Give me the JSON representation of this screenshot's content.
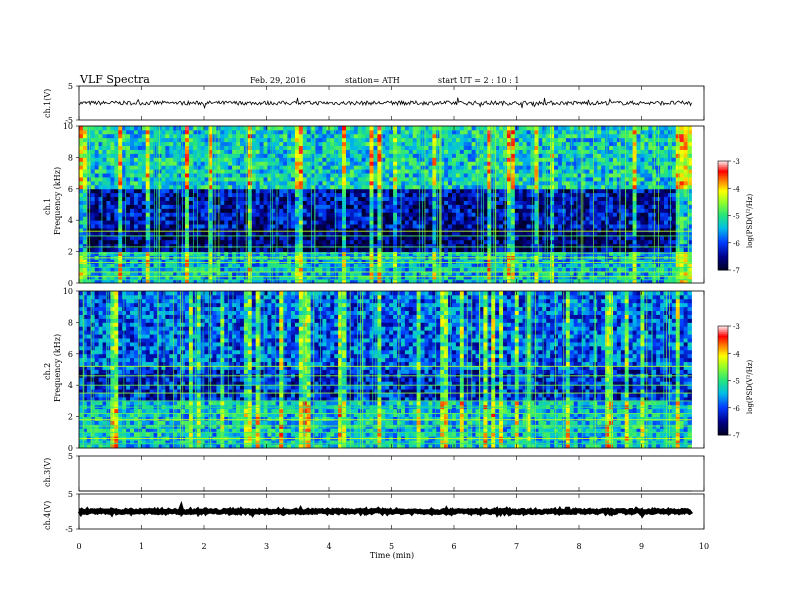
{
  "header": {
    "title": "VLF  Spectra",
    "date": "Feb. 29, 2016",
    "station": "station= ATH",
    "start": "start  UT  =   2  : 10 : 1"
  },
  "colors": {
    "background": "#ffffff",
    "axes": "#000000",
    "spec_dark": "#000033",
    "spec_blue": "#0000cc",
    "spec_cyan": "#00cccc",
    "spec_green": "#33ff66",
    "spec_yellow": "#ffff00",
    "spec_red": "#ff0000"
  },
  "chart_data": {
    "type": "heatmap",
    "xlabel": "Time  (min)",
    "xlim": [
      0,
      10
    ],
    "x_ticks": [
      "0",
      "1",
      "2",
      "3",
      "4",
      "5",
      "6",
      "7",
      "8",
      "9",
      "10"
    ],
    "data_end_min": 9.8,
    "panels": [
      {
        "id": "ch1_wave",
        "type": "line",
        "ylabel": "ch.1(V)",
        "ylim": [
          -5,
          5
        ],
        "y_ticks": [
          "5",
          "-5"
        ],
        "mean": 0,
        "noise": 0.6
      },
      {
        "id": "ch1_spec",
        "type": "heatmap",
        "ylabel": "ch.1",
        "ylabel2": "Frequency  (kHz)",
        "ylim": [
          0,
          10
        ],
        "y_ticks": [
          "0",
          "2",
          "4",
          "6",
          "8",
          "10"
        ],
        "bands": [
          {
            "f0": 0.0,
            "f1": 2.0,
            "level": -5.5
          },
          {
            "f0": 2.0,
            "f1": 3.5,
            "level": -6.7
          },
          {
            "f0": 3.5,
            "f1": 5.8,
            "level": -6.4
          },
          {
            "f0": 5.8,
            "f1": 10.0,
            "level": -5.3
          }
        ],
        "lines_khz": [
          0.2,
          0.4,
          0.7,
          1.0,
          1.3,
          1.6,
          1.9,
          2.3,
          3.0,
          3.3
        ]
      },
      {
        "id": "ch2_spec",
        "type": "heatmap",
        "ylabel": "ch.2",
        "ylabel2": "Frequency  (kHz)",
        "ylim": [
          0,
          10
        ],
        "y_ticks": [
          "0",
          "2",
          "4",
          "6",
          "8",
          "10"
        ],
        "bands": [
          {
            "f0": 0.0,
            "f1": 3.0,
            "level": -5.4
          },
          {
            "f0": 3.0,
            "f1": 5.0,
            "level": -6.2
          },
          {
            "f0": 5.0,
            "f1": 10.0,
            "level": -5.9
          }
        ],
        "lines_khz": [
          0.3,
          0.6,
          1.0,
          1.4,
          1.8,
          2.2,
          2.6,
          3.0,
          3.5,
          4.0,
          4.6,
          5.2
        ]
      },
      {
        "id": "ch3_wave",
        "type": "line",
        "ylabel": "ch.3(V)",
        "ylim": [
          -5,
          5
        ],
        "y_ticks": [
          "5"
        ],
        "mean": -5,
        "noise": 0.0
      },
      {
        "id": "ch4_wave",
        "type": "line",
        "ylabel": "ch.4(V)",
        "ylim": [
          -5,
          5
        ],
        "y_ticks": [
          "5",
          "-5"
        ],
        "mean": 0,
        "noise": 0.3
      }
    ],
    "colorbar": {
      "label": "log(PSD(V²/Hz)",
      "range": [
        -7,
        -3
      ],
      "ticks": [
        "-3",
        "-4",
        "-5",
        "-6",
        "-7"
      ]
    }
  }
}
